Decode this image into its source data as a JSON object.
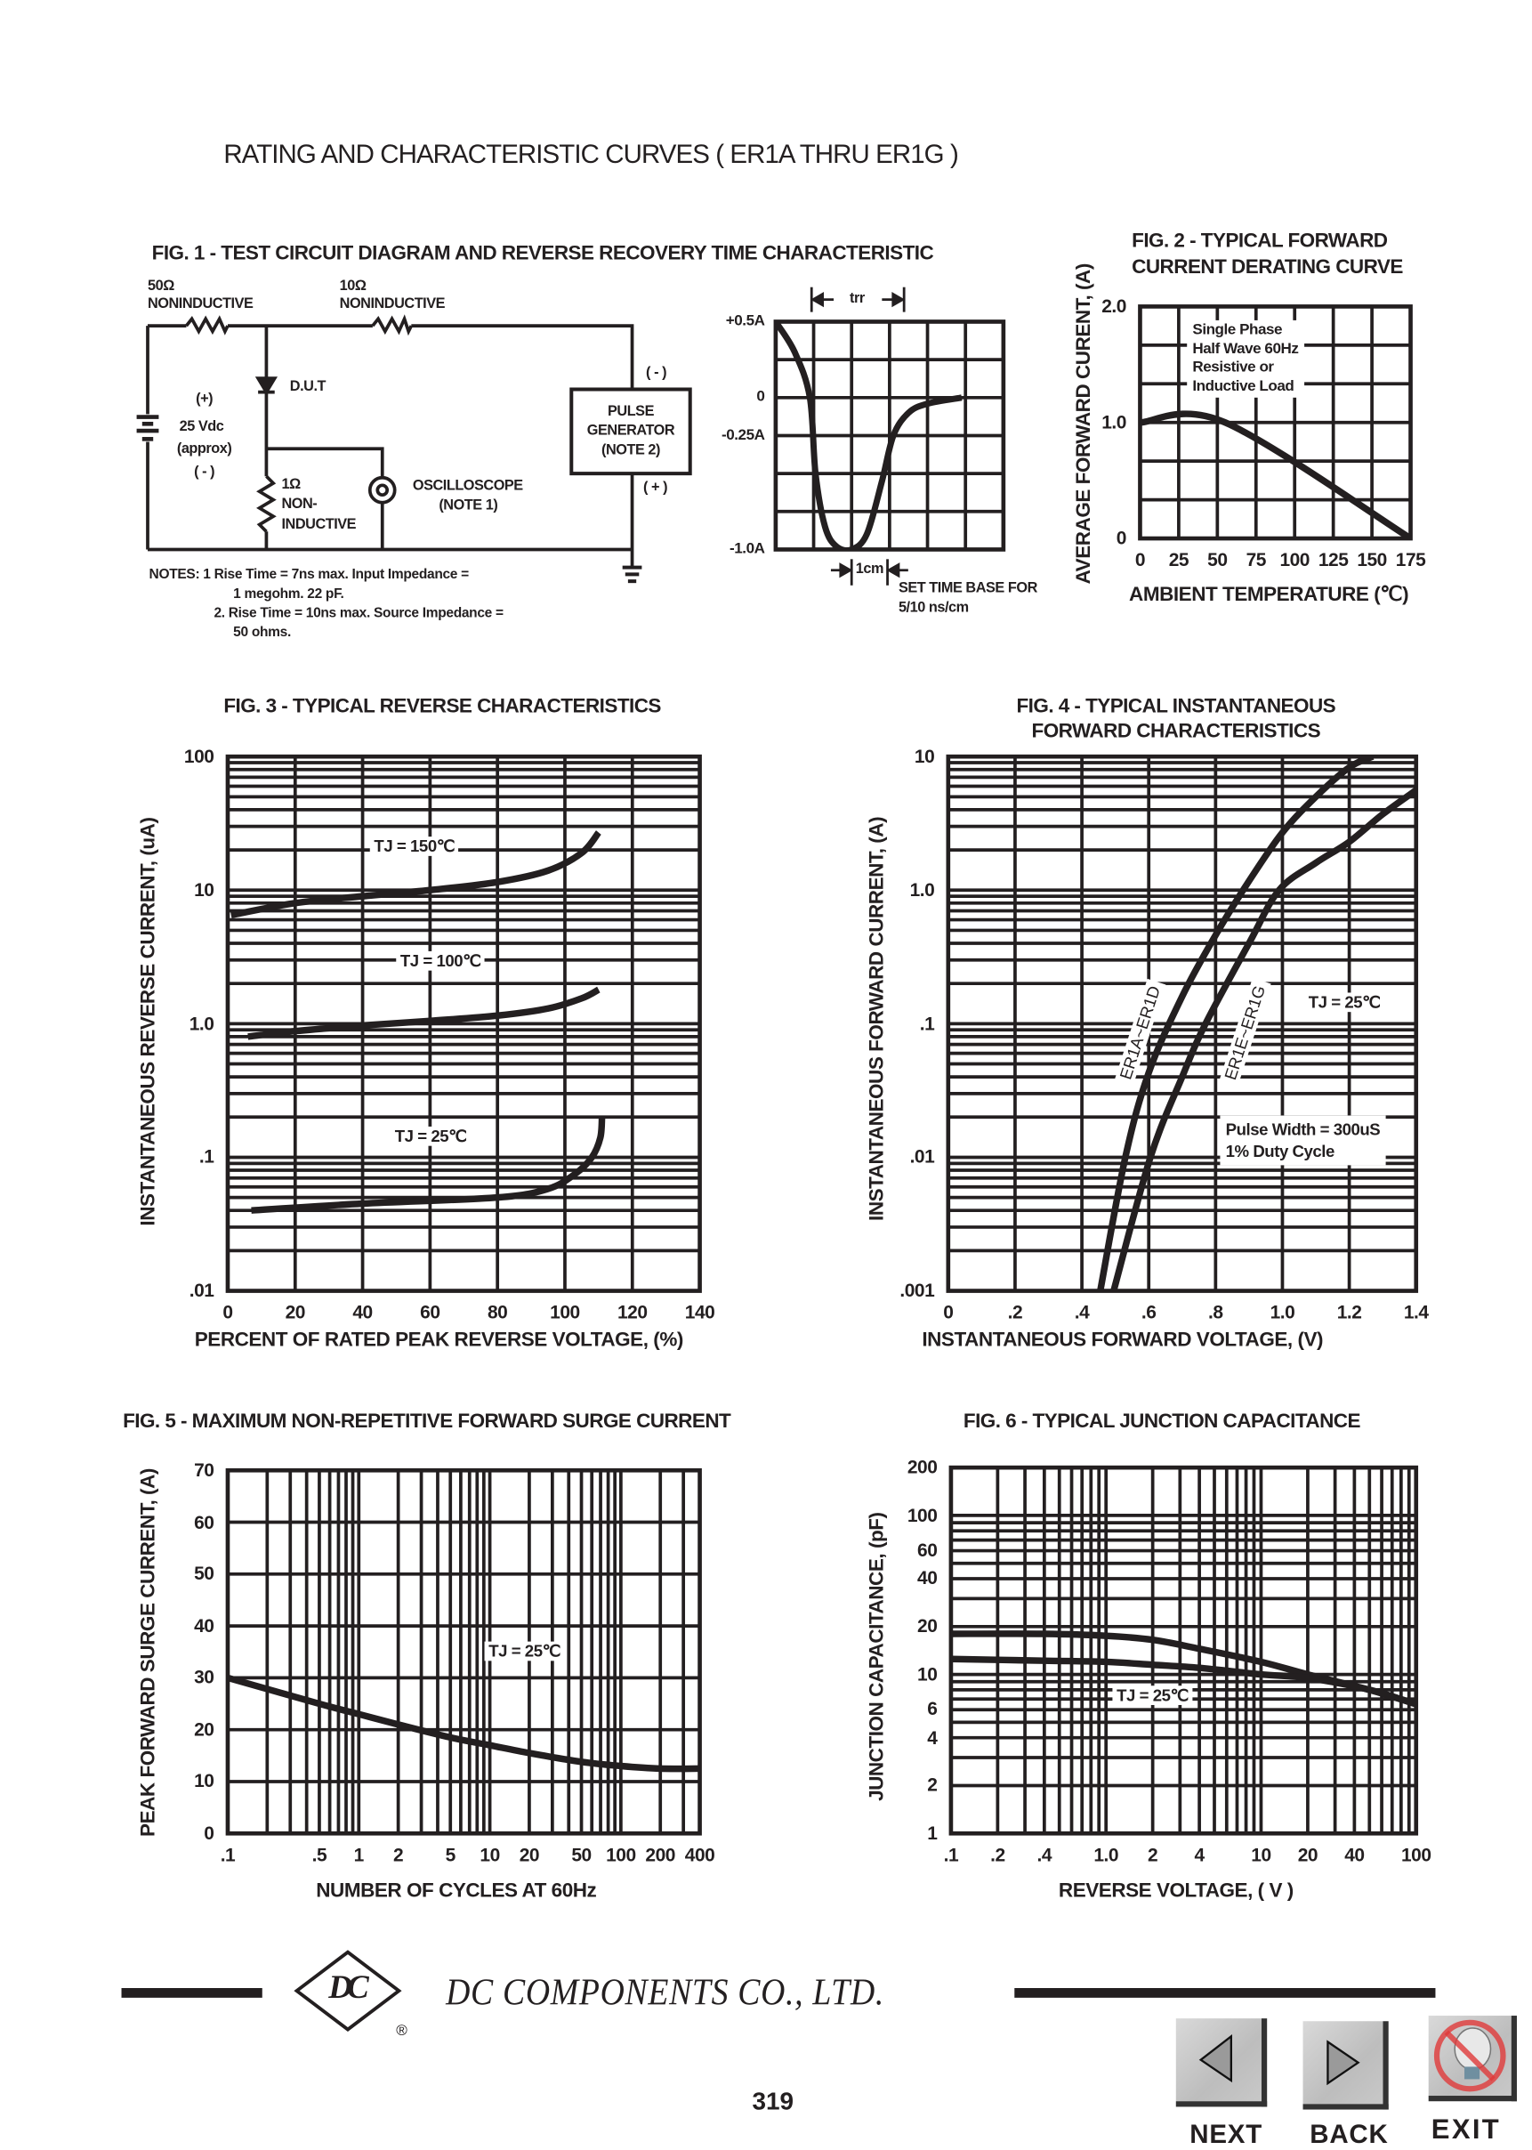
{
  "header": {
    "title": "RATING AND CHARACTERISTIC CURVES ( ER1A THRU ER1G )"
  },
  "figure1": {
    "title": "FIG. 1 - TEST CIRCUIT DIAGRAM  AND REVERSE RECOVERY TIME CHARACTERISTIC",
    "circuit": {
      "r1_value": "50Ω",
      "r1_type": "NONINDUCTIVE",
      "r2_value": "10Ω",
      "r2_type": "NONINDUCTIVE",
      "dut": "D.U.T",
      "battery_plus": "(+)",
      "battery_voltage": "25 Vdc",
      "battery_approx": "(approx)",
      "battery_minus": "( - )",
      "r3_value": "1Ω",
      "r3_type_1": "NON-",
      "r3_type_2": "INDUCTIVE",
      "scope_1": "OSCILLOSCOPE",
      "scope_2": "(NOTE 1)",
      "pulse_1": "PULSE",
      "pulse_2": "GENERATOR",
      "pulse_3": "(NOTE 2)",
      "pulse_minus": "( - )",
      "pulse_plus": "( + )"
    },
    "notes": [
      "NOTES: 1  Rise Time = 7ns max. Input Impedance =",
      "1 megohm. 22 pF.",
      "2. Rise Time = 10ns max. Source Impedance =",
      "50 ohms."
    ],
    "scope": {
      "trr": "trr",
      "division": "1cm",
      "timebase_1": "SET TIME BASE FOR",
      "timebase_2": "5/10 ns/cm"
    }
  },
  "chart_data": [
    {
      "type": "line",
      "title": "",
      "xlabel": "",
      "ylabel": "",
      "x_scale": "linear",
      "y_scale": "linear",
      "xlim": [
        0,
        6
      ],
      "ylim": [
        -1.0,
        0.5
      ],
      "grid": true,
      "x_ticks": [],
      "x_tick_labels": [],
      "y_ticks": [
        0.5,
        0,
        -0.25,
        -1.0
      ],
      "y_tick_labels": [
        "+0.5A",
        "0",
        "-0.25A",
        "-1.0A"
      ],
      "series": [
        {
          "x": [
            0,
            0.5,
            0.9,
            1.05,
            1.3,
            1.6,
            2.0,
            2.4,
            2.8,
            3.1,
            3.5,
            4.0,
            4.9
          ],
          "y": [
            0.5,
            0.3,
            0,
            -0.5,
            -0.85,
            -0.98,
            -1.0,
            -0.9,
            -0.55,
            -0.25,
            -0.1,
            -0.04,
            0
          ]
        }
      ]
    },
    {
      "type": "line",
      "title_lines": [
        "FIG. 2 - TYPICAL FORWARD",
        "CURRENT DERATING CURVE"
      ],
      "xlabel": "AMBIENT TEMPERATURE (℃)",
      "ylabel": "AVERAGE FORWARD CURENT, (A)",
      "x_scale": "linear",
      "y_scale": "linear",
      "xlim": [
        0,
        175
      ],
      "ylim": [
        0,
        2.0
      ],
      "grid": true,
      "x_ticks": [
        0,
        25,
        50,
        75,
        100,
        125,
        150,
        175
      ],
      "x_tick_labels": [
        "0",
        "25",
        "50",
        "75",
        "100",
        "125",
        "150",
        "175"
      ],
      "y_ticks": [
        2.0,
        1.0,
        0
      ],
      "y_tick_labels": [
        "2.0",
        "1.0",
        "0"
      ],
      "annotations": [
        "Single Phase",
        "Half Wave 60Hz",
        "Resistive or",
        "Inductive Load"
      ],
      "series": [
        {
          "x": [
            0,
            55,
            175
          ],
          "y": [
            1.0,
            1.0,
            0
          ]
        }
      ]
    },
    {
      "type": "line",
      "title": "FIG. 3 - TYPICAL REVERSE CHARACTERISTICS",
      "xlabel": "PERCENT OF RATED PEAK REVERSE VOLTAGE, (%)",
      "ylabel": "INSTANTANEOUS REVERSE CURRENT, (uA)",
      "x_scale": "linear",
      "y_scale": "log",
      "xlim": [
        0,
        140
      ],
      "ylim": [
        0.01,
        100
      ],
      "grid": true,
      "x_ticks": [
        0,
        20,
        40,
        60,
        80,
        100,
        120,
        140
      ],
      "x_tick_labels": [
        "0",
        "20",
        "40",
        "60",
        "80",
        "100",
        "120",
        "140"
      ],
      "y_ticks": [
        100,
        10,
        1,
        0.1,
        0.01
      ],
      "y_tick_labels": [
        "100",
        "10",
        "1.0",
        ".1",
        ".01"
      ],
      "series": [
        {
          "name": "TJ = 150℃",
          "x": [
            1,
            20,
            40,
            60,
            80,
            95,
            105,
            110
          ],
          "y": [
            6.5,
            8,
            9,
            10,
            11.5,
            14,
            19,
            27
          ]
        },
        {
          "name": "TJ = 100℃",
          "x": [
            6,
            20,
            40,
            60,
            80,
            95,
            105,
            110
          ],
          "y": [
            0.8,
            0.88,
            0.97,
            1.05,
            1.15,
            1.3,
            1.55,
            1.8
          ]
        },
        {
          "name": "TJ = 25℃",
          "x": [
            7,
            40,
            80,
            95,
            103,
            108,
            110.5,
            111
          ],
          "y": [
            0.04,
            0.045,
            0.05,
            0.058,
            0.075,
            0.1,
            0.14,
            0.2
          ]
        }
      ]
    },
    {
      "type": "line",
      "title_lines": [
        "FIG. 4 - TYPICAL INSTANTANEOUS",
        "FORWARD CHARACTERISTICS"
      ],
      "xlabel": "INSTANTANEOUS FORWARD VOLTAGE, (V)",
      "ylabel": "INSTANTANEOUS FORWARD CURRENT, (A)",
      "x_scale": "linear",
      "y_scale": "log",
      "xlim": [
        0,
        1.4
      ],
      "ylim": [
        0.001,
        10
      ],
      "grid": true,
      "x_ticks": [
        0,
        0.2,
        0.4,
        0.6,
        0.8,
        1.0,
        1.2,
        1.4
      ],
      "x_tick_labels": [
        "0",
        ".2",
        ".4",
        ".6",
        ".8",
        "1.0",
        "1.2",
        "1.4"
      ],
      "y_ticks": [
        10,
        1,
        0.1,
        0.01,
        0.001
      ],
      "y_tick_labels": [
        "10",
        "1.0",
        ".1",
        ".01",
        ".001"
      ],
      "annotations": [
        "TJ = 25℃",
        "Pulse Width = 300uS",
        "1% Duty Cycle"
      ],
      "series": [
        {
          "name": "ER1A~ER1D",
          "x": [
            0.455,
            0.53,
            0.6,
            0.7,
            0.8,
            0.9,
            1.0,
            1.1,
            1.2,
            1.27
          ],
          "y": [
            0.001,
            0.01,
            0.043,
            0.16,
            0.46,
            1.17,
            2.7,
            5.0,
            8.3,
            10
          ]
        },
        {
          "name": "ER1E~ER1G",
          "x": [
            0.495,
            0.605,
            0.7,
            0.77,
            0.9,
            0.99,
            1.1,
            1.2,
            1.3,
            1.4
          ],
          "y": [
            0.001,
            0.01,
            0.04,
            0.1,
            0.4,
            1.0,
            1.6,
            2.3,
            3.7,
            5.6
          ]
        }
      ]
    },
    {
      "type": "line",
      "title": "FIG. 5 - MAXIMUM NON-REPETITIVE FORWARD SURGE CURRENT",
      "xlabel": "NUMBER OF CYCLES AT 60Hz",
      "ylabel": "PEAK FORWARD SURGE CURRENT, (A)",
      "x_scale": "log",
      "y_scale": "linear",
      "xlim": [
        0.1,
        400
      ],
      "ylim": [
        0,
        70
      ],
      "grid": true,
      "x_ticks": [
        0.1,
        0.5,
        1,
        2,
        5,
        10,
        20,
        50,
        100,
        200,
        400
      ],
      "x_tick_labels": [
        ".1",
        ".5",
        "1",
        "2",
        "5",
        "10",
        "20",
        "50",
        "100",
        "200",
        "400"
      ],
      "y_ticks": [
        70,
        60,
        50,
        40,
        30,
        20,
        10,
        0
      ],
      "y_tick_labels": [
        "70",
        "60",
        "50",
        "40",
        "30",
        "20",
        "10",
        "0"
      ],
      "annotations": [
        "TJ = 25℃"
      ],
      "series": [
        {
          "x": [
            0.1,
            0.5,
            1,
            2,
            5,
            10,
            20,
            50,
            100,
            200,
            400
          ],
          "y": [
            30,
            25,
            23,
            21,
            18.5,
            17,
            15.5,
            13.8,
            13,
            12.5,
            12.5
          ]
        }
      ]
    },
    {
      "type": "line",
      "title": "FIG. 6 - TYPICAL JUNCTION CAPACITANCE",
      "xlabel": "REVERSE VOLTAGE, ( V )",
      "ylabel": "JUNCTION CAPACITANCE, (pF)",
      "x_scale": "log",
      "y_scale": "log",
      "xlim": [
        0.1,
        100
      ],
      "ylim": [
        1,
        200
      ],
      "grid": true,
      "x_ticks": [
        0.1,
        0.2,
        0.4,
        1,
        2,
        4,
        10,
        20,
        40,
        100
      ],
      "x_tick_labels": [
        ".1",
        ".2",
        ".4",
        "1.0",
        "2",
        "4",
        "10",
        "20",
        "40",
        "100"
      ],
      "y_ticks": [
        200,
        100,
        60,
        40,
        20,
        10,
        6,
        4,
        2,
        1
      ],
      "y_tick_labels": [
        "200",
        "100",
        "60",
        "40",
        "20",
        "10",
        "6",
        "4",
        "2",
        "1"
      ],
      "annotations": [
        "TJ = 25℃"
      ],
      "series": [
        {
          "x": [
            0.1,
            0.4,
            1,
            2,
            4,
            10,
            20,
            50,
            100
          ],
          "y": [
            18,
            18,
            17.5,
            16.5,
            14.5,
            12,
            10,
            8,
            6.5
          ]
        },
        {
          "x": [
            0.1,
            0.4,
            1,
            2,
            4,
            10,
            20,
            50,
            100
          ],
          "y": [
            12.5,
            12.2,
            12,
            11.5,
            11,
            10,
            9.5,
            8,
            6.5
          ]
        }
      ]
    }
  ],
  "footer": {
    "company": "DC COMPONENTS CO., LTD.",
    "logo_text": "DC",
    "registered_mark": "®",
    "page_number": "319",
    "nav": {
      "next": "NEXT",
      "back": "BACK",
      "exit": "EXIT"
    }
  },
  "colors": {
    "ink": "#231f20",
    "button_face": "#c8c8c8",
    "exit_prohibit": "#e03a3a"
  }
}
